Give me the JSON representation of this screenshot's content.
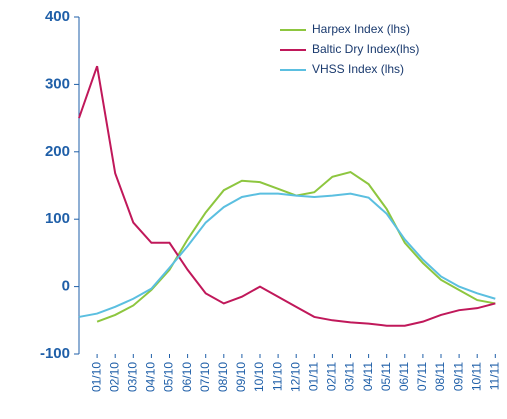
{
  "chart_data": {
    "type": "line",
    "categories": [
      null,
      "01/10",
      "02/10",
      "03/10",
      "04/10",
      "05/10",
      "06/10",
      "07/10",
      "08/10",
      "09/10",
      "10/10",
      "11/10",
      "12/10",
      "01/11",
      "02/11",
      "03/11",
      "04/11",
      "05/11",
      "06/11",
      "07/11",
      "08/11",
      "09/11",
      "10/11",
      "11/11"
    ],
    "series": [
      {
        "name": "Harpex Index (lhs)",
        "color": "#8dc63f",
        "values": [
          null,
          -52,
          -42,
          -28,
          -5,
          25,
          70,
          110,
          143,
          157,
          155,
          145,
          135,
          140,
          163,
          170,
          152,
          115,
          65,
          35,
          10,
          -5,
          -20,
          -25
        ]
      },
      {
        "name": "Baltic Dry Index(lhs)",
        "color": "#c0185a",
        "values": [
          250,
          327,
          168,
          95,
          65,
          65,
          25,
          -10,
          -25,
          -15,
          0,
          -15,
          -30,
          -45,
          -50,
          -53,
          -55,
          -58,
          -58,
          -52,
          -42,
          -35,
          -32,
          -25
        ]
      },
      {
        "name": "VHSS Index (lhs)",
        "color": "#5bbfe0",
        "values": [
          -45,
          -40,
          -30,
          -18,
          -3,
          28,
          60,
          95,
          118,
          133,
          138,
          138,
          135,
          133,
          135,
          138,
          132,
          108,
          70,
          40,
          15,
          0,
          -10,
          -18
        ]
      }
    ],
    "ylim": [
      -100,
      400
    ],
    "yticks": [
      -100,
      0,
      100,
      200,
      300,
      400
    ],
    "legend": "top-right"
  }
}
